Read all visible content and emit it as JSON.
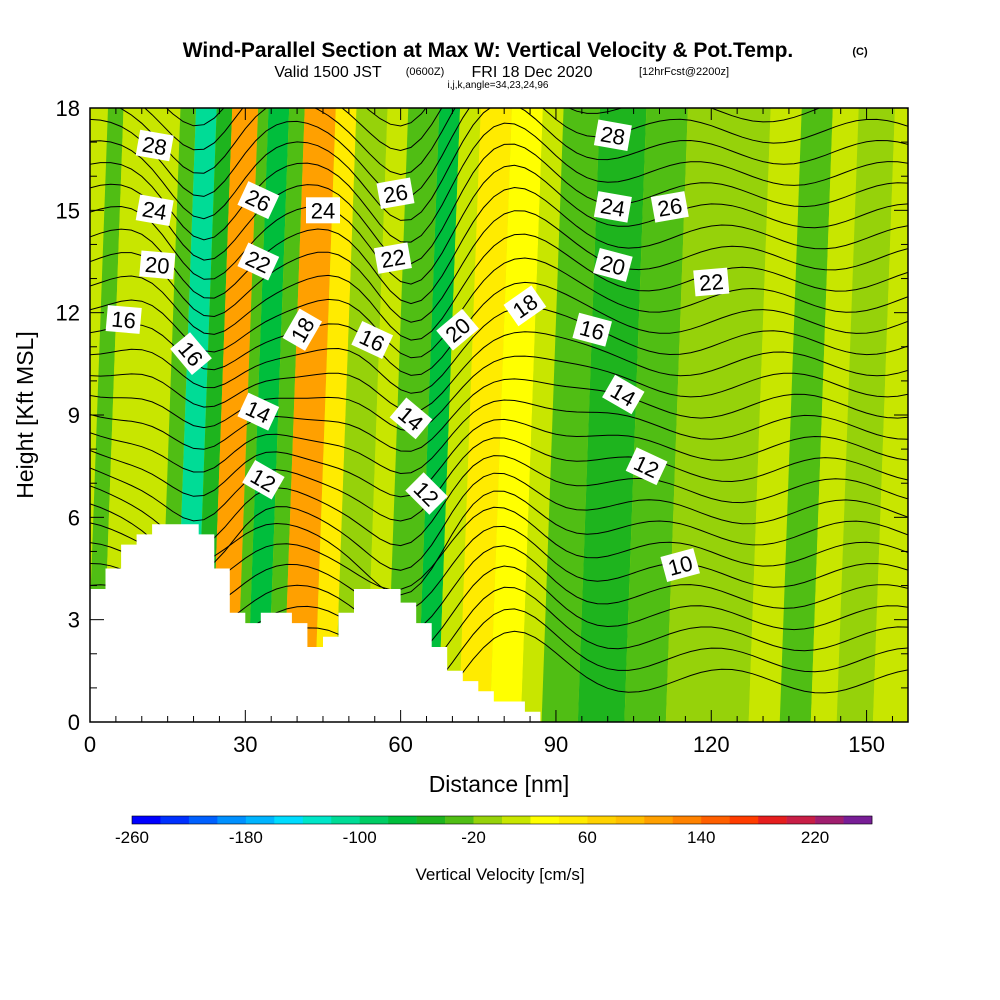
{
  "chart_data": {
    "type": "heatmap",
    "title": "Wind-Parallel Section at Max W: Vertical Velocity & Pot.Temp.",
    "copyright": "(C)",
    "subtitle": {
      "valid": "Valid 1500 JST",
      "utc": "(0600Z)",
      "date": "FRI 18 Dec 2020",
      "forecast": "[12hrFcst@2200z]"
    },
    "section_info": "i,j,k,angle=34,23,24,96",
    "xlabel": "Distance [nm]",
    "ylabel": "Height [Kft MSL]",
    "xlim": [
      0,
      158
    ],
    "ylim": [
      0,
      18
    ],
    "x_ticks": [
      "0",
      "30",
      "60",
      "90",
      "120",
      "150"
    ],
    "y_ticks": [
      "0",
      "3",
      "6",
      "9",
      "12",
      "15",
      "18"
    ],
    "colorbar": {
      "label": "Vertical Velocity [cm/s]",
      "min": -260,
      "max": 260,
      "step": 20,
      "tick_labels": [
        "-260",
        "-180",
        "-100",
        "-20",
        "60",
        "140",
        "220"
      ],
      "colors": [
        "#0000ff",
        "#0030ff",
        "#0060ff",
        "#0090ff",
        "#00b4ff",
        "#00dcff",
        "#00e6c8",
        "#00dc96",
        "#00cd64",
        "#00be3c",
        "#1eb41e",
        "#50be14",
        "#96d20a",
        "#c8e600",
        "#ffff00",
        "#ffeb00",
        "#ffd200",
        "#ffbe00",
        "#ffa000",
        "#ff8200",
        "#ff5f00",
        "#ff3c00",
        "#e61e1e",
        "#c81e46",
        "#a01e6e",
        "#781e96"
      ]
    },
    "velocity_bands": [
      {
        "x0": 0,
        "x1": 3,
        "w": -40
      },
      {
        "x0": 3,
        "x1": 14,
        "w": 0
      },
      {
        "x0": 14,
        "x1": 17,
        "w": -40
      },
      {
        "x0": 17,
        "x1": 21,
        "w": -110
      },
      {
        "x0": 21,
        "x1": 24,
        "w": -50
      },
      {
        "x0": 24,
        "x1": 29,
        "w": 100
      },
      {
        "x0": 29,
        "x1": 31,
        "w": -40
      },
      {
        "x0": 31,
        "x1": 35,
        "w": -80
      },
      {
        "x0": 35,
        "x1": 38,
        "w": -30
      },
      {
        "x0": 38,
        "x1": 44,
        "w": 100
      },
      {
        "x0": 44,
        "x1": 48,
        "w": 40
      },
      {
        "x0": 48,
        "x1": 54,
        "w": -20
      },
      {
        "x0": 54,
        "x1": 58,
        "w": 0
      },
      {
        "x0": 58,
        "x1": 64,
        "w": -40
      },
      {
        "x0": 64,
        "x1": 68,
        "w": -80
      },
      {
        "x0": 68,
        "x1": 72,
        "w": 0
      },
      {
        "x0": 72,
        "x1": 78,
        "w": 40
      },
      {
        "x0": 78,
        "x1": 84,
        "w": 30
      },
      {
        "x0": 84,
        "x1": 88,
        "w": 10
      },
      {
        "x0": 88,
        "x1": 95,
        "w": -30
      },
      {
        "x0": 95,
        "x1": 104,
        "w": -50
      },
      {
        "x0": 104,
        "x1": 112,
        "w": -30
      },
      {
        "x0": 112,
        "x1": 128,
        "w": -10
      },
      {
        "x0": 128,
        "x1": 134,
        "w": 0
      },
      {
        "x0": 134,
        "x1": 140,
        "w": -30
      },
      {
        "x0": 140,
        "x1": 145,
        "w": 0
      },
      {
        "x0": 145,
        "x1": 152,
        "w": -20
      },
      {
        "x0": 152,
        "x1": 158,
        "w": 10
      }
    ],
    "terrain": [
      [
        0,
        3.9
      ],
      [
        3,
        3.9
      ],
      [
        3,
        4.5
      ],
      [
        6,
        4.5
      ],
      [
        6,
        5.2
      ],
      [
        9,
        5.2
      ],
      [
        9,
        5.5
      ],
      [
        12,
        5.5
      ],
      [
        12,
        5.8
      ],
      [
        21,
        5.8
      ],
      [
        21,
        5.5
      ],
      [
        24,
        5.5
      ],
      [
        24,
        4.5
      ],
      [
        27,
        4.5
      ],
      [
        27,
        3.2
      ],
      [
        30,
        3.2
      ],
      [
        30,
        2.9
      ],
      [
        33,
        2.9
      ],
      [
        33,
        3.2
      ],
      [
        39,
        3.2
      ],
      [
        39,
        2.9
      ],
      [
        42,
        2.9
      ],
      [
        42,
        2.2
      ],
      [
        45,
        2.2
      ],
      [
        45,
        2.5
      ],
      [
        48,
        2.5
      ],
      [
        48,
        3.2
      ],
      [
        51,
        3.2
      ],
      [
        51,
        3.9
      ],
      [
        60,
        3.9
      ],
      [
        60,
        3.5
      ],
      [
        63,
        3.5
      ],
      [
        63,
        2.9
      ],
      [
        66,
        2.9
      ],
      [
        66,
        2.2
      ],
      [
        69,
        2.2
      ],
      [
        69,
        1.5
      ],
      [
        72,
        1.5
      ],
      [
        72,
        1.2
      ],
      [
        75,
        1.2
      ],
      [
        75,
        0.9
      ],
      [
        78,
        0.9
      ],
      [
        78,
        0.6
      ],
      [
        84,
        0.6
      ],
      [
        84,
        0.3
      ],
      [
        87,
        0.3
      ],
      [
        87,
        0
      ]
    ],
    "isentrope_labels": [
      {
        "text": "28",
        "x": 12.5,
        "y": 16.9,
        "rot": 10
      },
      {
        "text": "24",
        "x": 12.5,
        "y": 15.0,
        "rot": 10
      },
      {
        "text": "20",
        "x": 13.0,
        "y": 13.4,
        "rot": 5
      },
      {
        "text": "16",
        "x": 6.5,
        "y": 11.8,
        "rot": 5
      },
      {
        "text": "16",
        "x": 19.5,
        "y": 10.8,
        "rot": 50
      },
      {
        "text": "26",
        "x": 32.5,
        "y": 15.3,
        "rot": 25
      },
      {
        "text": "22",
        "x": 32.5,
        "y": 13.5,
        "rot": 25
      },
      {
        "text": "24",
        "x": 45.0,
        "y": 15.0,
        "rot": 0
      },
      {
        "text": "18",
        "x": 41.0,
        "y": 11.5,
        "rot": -60
      },
      {
        "text": "26",
        "x": 59.0,
        "y": 15.5,
        "rot": -10
      },
      {
        "text": "22",
        "x": 58.5,
        "y": 13.6,
        "rot": -10
      },
      {
        "text": "16",
        "x": 54.5,
        "y": 11.2,
        "rot": 25
      },
      {
        "text": "14",
        "x": 32.5,
        "y": 9.1,
        "rot": 25
      },
      {
        "text": "12",
        "x": 33.5,
        "y": 7.1,
        "rot": 30
      },
      {
        "text": "14",
        "x": 62.0,
        "y": 8.9,
        "rot": 40
      },
      {
        "text": "12",
        "x": 65.0,
        "y": 6.7,
        "rot": 45
      },
      {
        "text": "20",
        "x": 71.0,
        "y": 11.5,
        "rot": -40
      },
      {
        "text": "18",
        "x": 84.0,
        "y": 12.2,
        "rot": -35
      },
      {
        "text": "28",
        "x": 101.0,
        "y": 17.2,
        "rot": 10
      },
      {
        "text": "24",
        "x": 101.0,
        "y": 15.1,
        "rot": 10
      },
      {
        "text": "26",
        "x": 112.0,
        "y": 15.1,
        "rot": -10
      },
      {
        "text": "20",
        "x": 101.0,
        "y": 13.4,
        "rot": 15
      },
      {
        "text": "22",
        "x": 120.0,
        "y": 12.9,
        "rot": -5
      },
      {
        "text": "16",
        "x": 97.0,
        "y": 11.5,
        "rot": 15
      },
      {
        "text": "14",
        "x": 103.0,
        "y": 9.6,
        "rot": 30
      },
      {
        "text": "12",
        "x": 107.5,
        "y": 7.5,
        "rot": 25
      },
      {
        "text": "10",
        "x": 114.0,
        "y": 4.6,
        "rot": -15
      }
    ]
  }
}
